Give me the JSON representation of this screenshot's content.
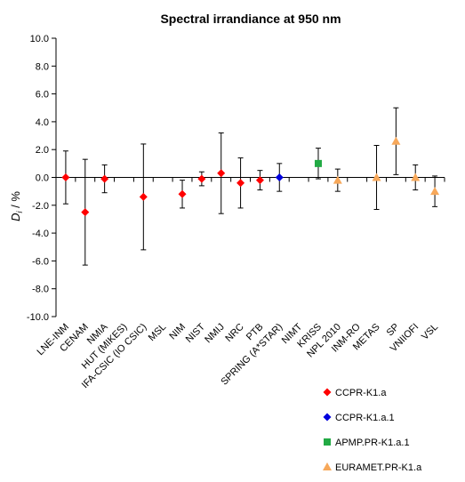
{
  "chart_data": {
    "type": "scatter",
    "title": "Spectral irrandiance at 950 nm",
    "ylabel": "D_i / %",
    "ylabel_main": "D",
    "ylabel_sub": "i",
    "ylabel_rest": " / %",
    "ylim": [
      -10.0,
      10.0
    ],
    "yticks": [
      10.0,
      8.0,
      6.0,
      4.0,
      2.0,
      0.0,
      -2.0,
      -4.0,
      -6.0,
      -8.0,
      -10.0
    ],
    "ytick_labels": [
      "10.0",
      "8.0",
      "6.0",
      "4.0",
      "2.0",
      "0.0",
      "-2.0",
      "-4.0",
      "-6.0",
      "-8.0",
      "-10.0"
    ],
    "grid": false,
    "legend_position": "bottom-right",
    "categories": [
      "LNE-INM",
      "CENAM",
      "NMIA",
      "HUT (MIKES)",
      "IFA-CSIC (IO CSIC)",
      "MSL",
      "NIM",
      "NIST",
      "NMIJ",
      "NRC",
      "PTB",
      "SPRING (A*STAR)",
      "NIMT",
      "KRISS",
      "NPL 2010",
      "INM-RO",
      "METAS",
      "SP",
      "VNIIOFI",
      "VSL"
    ],
    "series": [
      {
        "name": "CCPR-K1.a",
        "color": "#ff0000",
        "marker": "diamond",
        "points": [
          {
            "category": "LNE-INM",
            "y": 0.0,
            "err": 1.9
          },
          {
            "category": "CENAM",
            "y": -2.5,
            "err": 3.8
          },
          {
            "category": "NMIA",
            "y": -0.1,
            "err": 1.0
          },
          {
            "category": "IFA-CSIC (IO CSIC)",
            "y": -1.4,
            "err": 3.8
          },
          {
            "category": "NIM",
            "y": -1.2,
            "err": 1.0
          },
          {
            "category": "NIST",
            "y": -0.1,
            "err": 0.5
          },
          {
            "category": "NMIJ",
            "y": 0.3,
            "err": 2.9
          },
          {
            "category": "NRC",
            "y": -0.4,
            "err": 1.8
          },
          {
            "category": "PTB",
            "y": -0.2,
            "err": 0.7
          }
        ]
      },
      {
        "name": "CCPR-K1.a.1",
        "color": "#0000dd",
        "marker": "diamond",
        "points": [
          {
            "category": "SPRING (A*STAR)",
            "y": 0.0,
            "err": 1.0
          }
        ]
      },
      {
        "name": "APMP.PR-K1.a.1",
        "color": "#22aa44",
        "marker": "square",
        "points": [
          {
            "category": "KRISS",
            "y": 1.0,
            "err": 1.1
          }
        ]
      },
      {
        "name": "EURAMET.PR-K1.a",
        "color": "#f7a85a",
        "marker": "triangle",
        "points": [
          {
            "category": "NPL 2010",
            "y": -0.2,
            "err": 0.8
          },
          {
            "category": "METAS",
            "y": 0.0,
            "err": 2.3
          },
          {
            "category": "SP",
            "y": 2.6,
            "err": 2.4
          },
          {
            "category": "VNIIOFI",
            "y": 0.0,
            "err": 0.9
          },
          {
            "category": "VSL",
            "y": -1.0,
            "err": 1.1
          }
        ]
      }
    ]
  }
}
